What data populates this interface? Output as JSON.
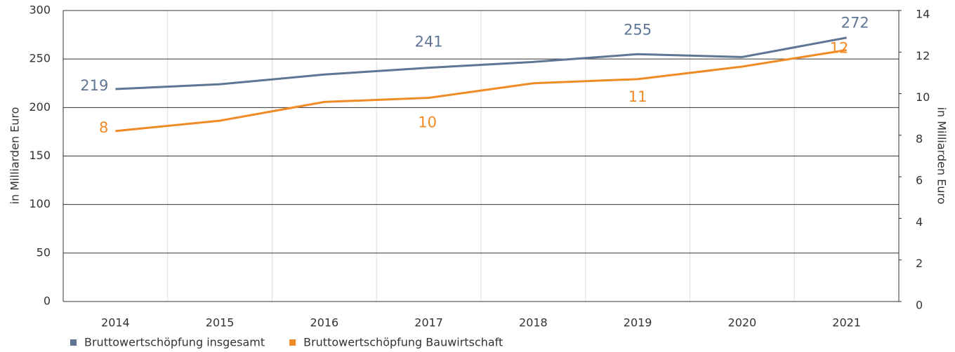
{
  "chart_data": {
    "type": "line",
    "y_label": "in Milliarden Euro",
    "y2_label": "in Milliarden Euro",
    "categories": [
      "2014",
      "2015",
      "2016",
      "2017",
      "2018",
      "2019",
      "2020",
      "2021"
    ],
    "ylim": [
      0,
      300
    ],
    "yticks": [
      0,
      50,
      100,
      150,
      200,
      250,
      300
    ],
    "y2lim": [
      0,
      14
    ],
    "y2ticks": [
      0,
      2,
      4,
      6,
      8,
      10,
      12,
      14
    ],
    "grid": true,
    "legend": "bottom-left",
    "series": [
      {
        "name": "Bruttowertschöpfung insgesamt",
        "color": "#5f7594",
        "values": [
          219,
          224,
          234,
          241,
          247,
          255,
          252,
          272
        ],
        "value_labels": [
          "219",
          null,
          null,
          "241",
          null,
          "255",
          null,
          "272"
        ]
      },
      {
        "name": "Bruttowertschöpfung Bauwirtschaft",
        "color": "#f08a24",
        "axis": "y2",
        "values": [
          8.2,
          8.7,
          9.6,
          9.8,
          10.5,
          10.7,
          11.3,
          12.1
        ],
        "value_labels": [
          "8",
          null,
          null,
          "10",
          null,
          "11",
          null,
          "12"
        ]
      }
    ]
  }
}
